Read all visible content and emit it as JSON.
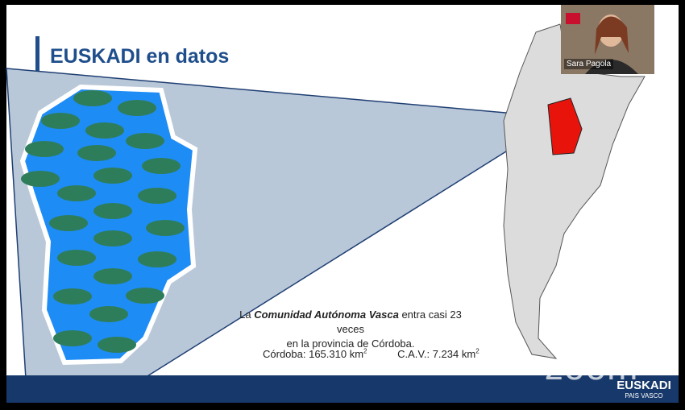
{
  "slide": {
    "title": "EUSKADI en datos",
    "caption": {
      "prefix": "La",
      "emphasis": "Comunidad Autónoma Vasca",
      "suffix": "entra casi 23 veces",
      "line2": "en la provincia de Córdoba."
    },
    "stats": [
      {
        "label": "Córdoba: 165.310 km",
        "sup": "2"
      },
      {
        "label": "C.A.V.: 7.234 km",
        "sup": "2"
      }
    ]
  },
  "video": {
    "participant": "Sara Pagola"
  },
  "watermark": "zoom",
  "logo": {
    "name": "EUSKADI",
    "sub": "PAIS VASCO"
  }
}
